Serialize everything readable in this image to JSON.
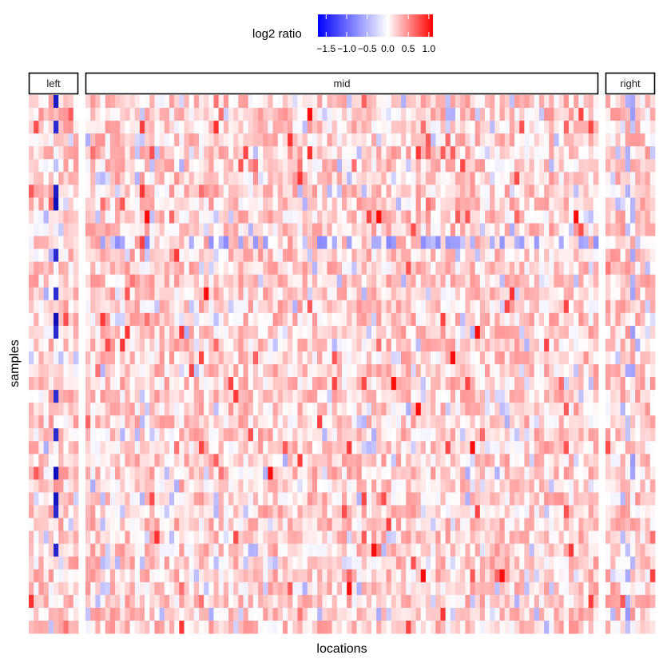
{
  "chart_data": {
    "type": "heatmap",
    "title": "",
    "xlabel": "locations",
    "ylabel": "samples",
    "facets": [
      "left",
      "mid",
      "right"
    ],
    "facet_columns": {
      "left": 10,
      "mid": 104,
      "right": 10
    },
    "rows": 42,
    "legend": {
      "title": "log2 ratio",
      "position": "top",
      "ticks": [
        "−1.5",
        "−1.0",
        "−0.5",
        "0.0",
        "0.5",
        "1.0"
      ],
      "tick_values": [
        -1.5,
        -1.0,
        -0.5,
        0.0,
        0.5,
        1.0
      ],
      "range": [
        -1.7,
        1.1
      ]
    },
    "colors": {
      "low": "#0000ff",
      "mid": "#ffffff",
      "high": "#ff0000"
    },
    "value_summary": {
      "typical": 0.15,
      "left_column_7_dips": -1.6,
      "right_columns_5_6_dips": -0.7,
      "mid_strong_low_row": 11,
      "mid_peak": 1.0
    }
  }
}
